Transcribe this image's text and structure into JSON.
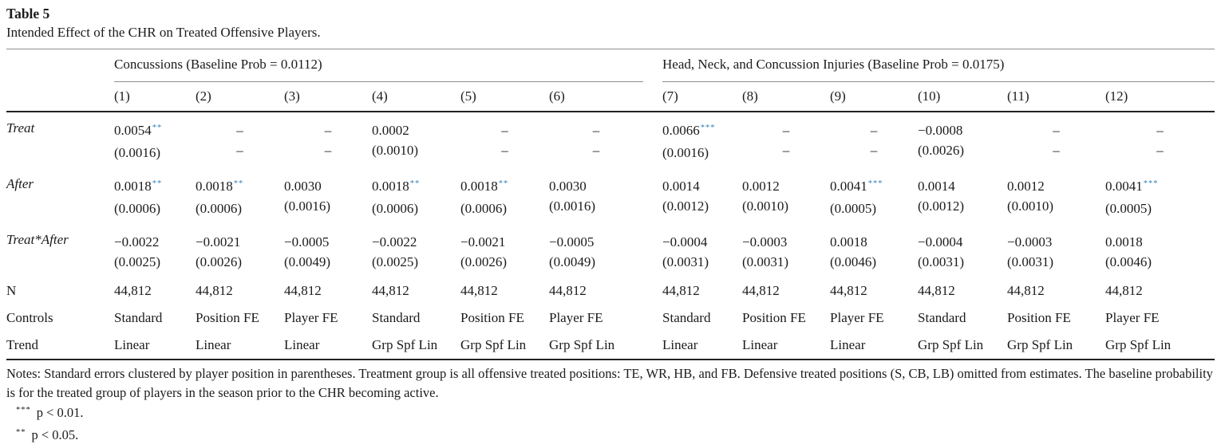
{
  "page": {
    "title": "Table 5",
    "subtitle": "Intended Effect of the CHR on Treated Offensive Players."
  },
  "table": {
    "empty_cell": "–",
    "groups": [
      {
        "label": "Concussions (Baseline Prob = 0.0112)",
        "columns": [
          "(1)",
          "(2)",
          "(3)",
          "(4)",
          "(5)",
          "(6)"
        ]
      },
      {
        "label": "Head, Neck, and Concussion Injuries (Baseline Prob = 0.0175)",
        "columns": [
          "(7)",
          "(8)",
          "(9)",
          "(10)",
          "(11)",
          "(12)"
        ]
      }
    ],
    "coef_rows": [
      {
        "label": "Treat",
        "italic": true,
        "cells": [
          {
            "est": "0.0054",
            "stars": "**",
            "se": "(0.0016)"
          },
          {
            "dash": true
          },
          {
            "dash": true
          },
          {
            "est": "0.0002",
            "stars": "",
            "se": "(0.0010)"
          },
          {
            "dash": true
          },
          {
            "dash": true
          },
          {
            "est": "0.0066",
            "stars": "***",
            "se": "(0.0016)"
          },
          {
            "dash": true
          },
          {
            "dash": true
          },
          {
            "est": "−0.0008",
            "stars": "",
            "se": "(0.0026)"
          },
          {
            "dash": true
          },
          {
            "dash": true
          }
        ]
      },
      {
        "label": "After",
        "italic": true,
        "cells": [
          {
            "est": "0.0018",
            "stars": "**",
            "se": "(0.0006)"
          },
          {
            "est": "0.0018",
            "stars": "**",
            "se": "(0.0006)"
          },
          {
            "est": "0.0030",
            "stars": "",
            "se": "(0.0016)"
          },
          {
            "est": "0.0018",
            "stars": "**",
            "se": "(0.0006)"
          },
          {
            "est": "0.0018",
            "stars": "**",
            "se": "(0.0006)"
          },
          {
            "est": "0.0030",
            "stars": "",
            "se": "(0.0016)"
          },
          {
            "est": "0.0014",
            "stars": "",
            "se": "(0.0012)"
          },
          {
            "est": "0.0012",
            "stars": "",
            "se": "(0.0010)"
          },
          {
            "est": "0.0041",
            "stars": "***",
            "se": "(0.0005)"
          },
          {
            "est": "0.0014",
            "stars": "",
            "se": "(0.0012)"
          },
          {
            "est": "0.0012",
            "stars": "",
            "se": "(0.0010)"
          },
          {
            "est": "0.0041",
            "stars": "***",
            "se": "(0.0005)"
          }
        ]
      },
      {
        "label": "Treat*After",
        "italic": true,
        "cells": [
          {
            "est": "−0.0022",
            "stars": "",
            "se": "(0.0025)"
          },
          {
            "est": "−0.0021",
            "stars": "",
            "se": "(0.0026)"
          },
          {
            "est": "−0.0005",
            "stars": "",
            "se": "(0.0049)"
          },
          {
            "est": "−0.0022",
            "stars": "",
            "se": "(0.0025)"
          },
          {
            "est": "−0.0021",
            "stars": "",
            "se": "(0.0026)"
          },
          {
            "est": "−0.0005",
            "stars": "",
            "se": "(0.0049)"
          },
          {
            "est": "−0.0004",
            "stars": "",
            "se": "(0.0031)"
          },
          {
            "est": "−0.0003",
            "stars": "",
            "se": "(0.0031)"
          },
          {
            "est": "0.0018",
            "stars": "",
            "se": "(0.0046)"
          },
          {
            "est": "−0.0004",
            "stars": "",
            "se": "(0.0031)"
          },
          {
            "est": "−0.0003",
            "stars": "",
            "se": "(0.0031)"
          },
          {
            "est": "0.0018",
            "stars": "",
            "se": "(0.0046)"
          }
        ]
      }
    ],
    "simple_rows": [
      {
        "label": "N",
        "values": [
          "44,812",
          "44,812",
          "44,812",
          "44,812",
          "44,812",
          "44,812",
          "44,812",
          "44,812",
          "44,812",
          "44,812",
          "44,812",
          "44,812"
        ]
      },
      {
        "label": "Controls",
        "values": [
          "Standard",
          "Position FE",
          "Player FE",
          "Standard",
          "Position FE",
          "Player FE",
          "Standard",
          "Position FE",
          "Player FE",
          "Standard",
          "Position FE",
          "Player FE"
        ]
      },
      {
        "label": "Trend",
        "values": [
          "Linear",
          "Linear",
          "Linear",
          "Grp Spf Lin",
          "Grp Spf Lin",
          "Grp Spf Lin",
          "Linear",
          "Linear",
          "Linear",
          "Grp Spf Lin",
          "Grp Spf Lin",
          "Grp Spf Lin"
        ]
      }
    ]
  },
  "notes": "Notes: Standard errors clustered by player position in parentheses. Treatment group is all offensive treated positions: TE, WR, HB, and FB. Defensive treated positions (S, CB, LB) omitted from estimates. The baseline probability is for the treated group of players in the season prior to the CHR becoming active.",
  "footnotes": [
    {
      "stars": "***",
      "text": "p < 0.01."
    },
    {
      "stars": "**",
      "text": "p < 0.05."
    }
  ],
  "colors": {
    "star": "#3181bd",
    "text": "#1b1b1b",
    "rule_light": "#8c8c8c",
    "rule_dark": "#222222"
  }
}
